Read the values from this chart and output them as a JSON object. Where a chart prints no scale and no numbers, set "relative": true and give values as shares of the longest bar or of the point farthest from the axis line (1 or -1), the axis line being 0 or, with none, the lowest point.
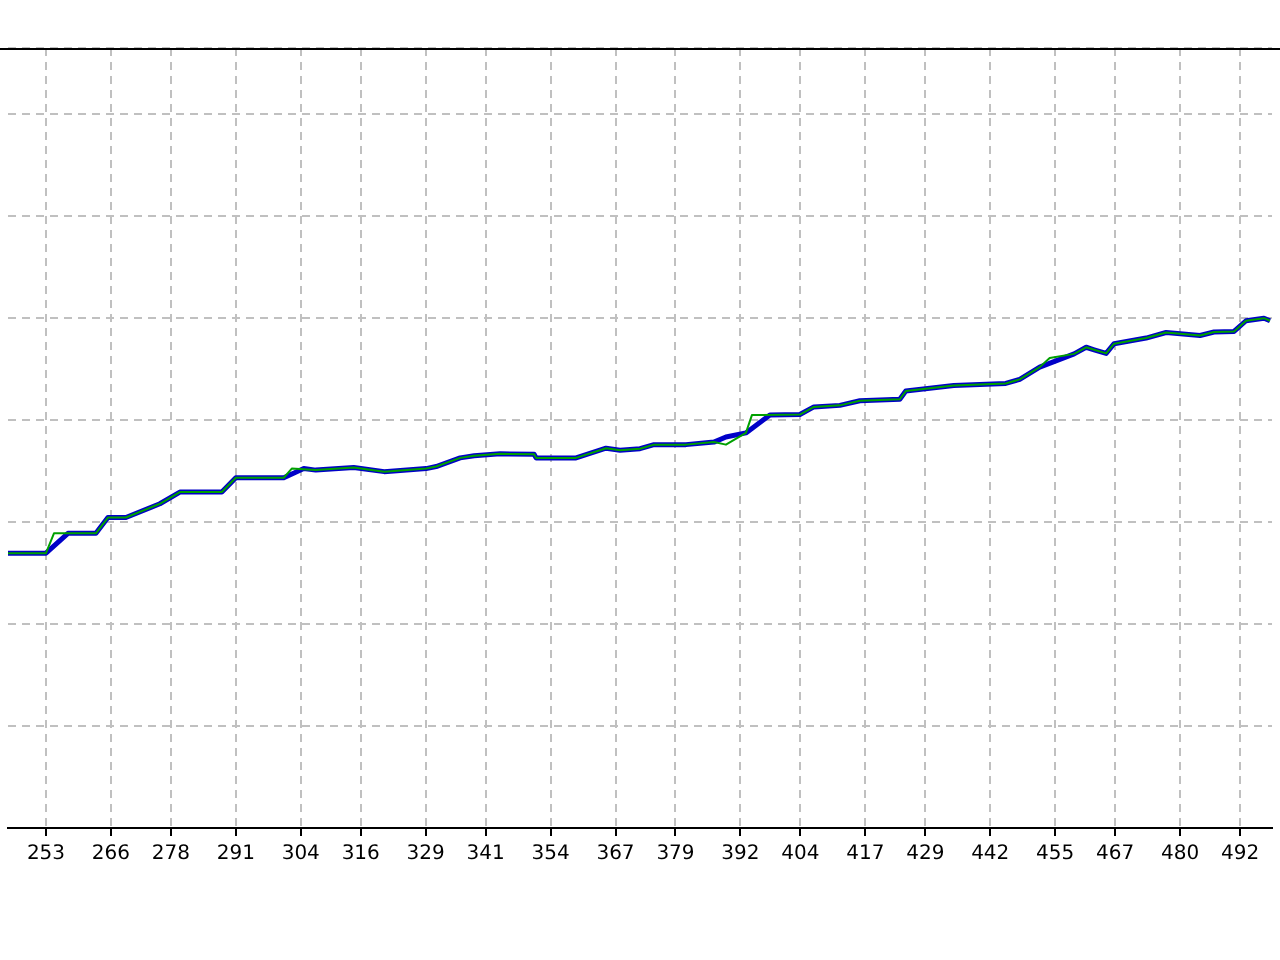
{
  "chart_data": {
    "type": "line",
    "relative": true,
    "grid": true,
    "legend": false,
    "marker": "none",
    "line_style": "solid",
    "xlim": [
      245.4,
      498.4
    ],
    "xticks": [
      253,
      266,
      278,
      291,
      304,
      316,
      329,
      341,
      354,
      367,
      379,
      392,
      404,
      417,
      429,
      442,
      455,
      467,
      480,
      492
    ],
    "series": [
      {
        "color": "#00a000",
        "x": [
          245.4,
          253.0,
          254.6,
          263.0,
          265.4,
          269.0,
          275.8,
          279.8,
          288.2,
          291.0,
          300.6,
          302.2,
          307.0,
          314.6,
          320.7,
          329.1,
          331.1,
          335.9,
          338.7,
          343.9,
          350.7,
          351.1,
          359.1,
          365.1,
          367.9,
          371.9,
          374.7,
          381.1,
          386.7,
          389.1,
          393.1,
          394.3,
          403.9,
          406.7,
          411.9,
          415.9,
          423.9,
          425.1,
          434.7,
          445.1,
          447.9,
          451.9,
          453.9,
          458.8,
          461.2,
          462.8,
          465.2,
          466.8,
          473.2,
          477.2,
          484.0,
          486.8,
          490.8,
          493.2,
          496.8,
          498.0
        ],
        "values": [
          0.539,
          0.539,
          0.578,
          0.578,
          0.609,
          0.609,
          0.636,
          0.659,
          0.659,
          0.687,
          0.687,
          0.705,
          0.702,
          0.707,
          0.699,
          0.705,
          0.709,
          0.726,
          0.73,
          0.734,
          0.733,
          0.726,
          0.726,
          0.745,
          0.741,
          0.744,
          0.752,
          0.752,
          0.757,
          0.752,
          0.775,
          0.81,
          0.811,
          0.826,
          0.829,
          0.838,
          0.841,
          0.857,
          0.868,
          0.872,
          0.88,
          0.904,
          0.922,
          0.93,
          0.943,
          0.938,
          0.931,
          0.95,
          0.961,
          0.972,
          0.966,
          0.973,
          0.974,
          0.995,
          1,
          0.995
        ]
      },
      {
        "color": "#0000c8",
        "x": [
          245.4,
          253.0,
          257.4,
          263.0,
          265.4,
          269.0,
          275.8,
          279.8,
          288.2,
          291.0,
          300.6,
          304.6,
          307.0,
          314.6,
          320.7,
          329.1,
          331.1,
          335.9,
          338.7,
          343.9,
          350.7,
          351.1,
          359.1,
          365.1,
          367.9,
          371.9,
          374.7,
          381.1,
          386.7,
          389.1,
          393.1,
          397.9,
          403.9,
          406.7,
          411.9,
          415.9,
          423.9,
          425.1,
          434.7,
          445.1,
          447.9,
          451.9,
          458.8,
          461.2,
          462.8,
          465.2,
          466.8,
          473.2,
          477.2,
          484.0,
          486.8,
          490.8,
          493.2,
          496.8,
          498.0
        ],
        "values": [
          0.539,
          0.539,
          0.578,
          0.578,
          0.609,
          0.609,
          0.636,
          0.659,
          0.659,
          0.687,
          0.687,
          0.705,
          0.702,
          0.707,
          0.699,
          0.705,
          0.709,
          0.726,
          0.73,
          0.734,
          0.733,
          0.726,
          0.726,
          0.745,
          0.741,
          0.744,
          0.752,
          0.752,
          0.757,
          0.767,
          0.775,
          0.81,
          0.811,
          0.826,
          0.829,
          0.838,
          0.841,
          0.857,
          0.868,
          0.872,
          0.88,
          0.904,
          0.93,
          0.943,
          0.938,
          0.931,
          0.95,
          0.961,
          0.972,
          0.966,
          0.973,
          0.974,
          0.995,
          1,
          0.995
        ]
      }
    ]
  }
}
